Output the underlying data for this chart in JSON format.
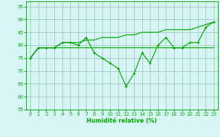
{
  "x": [
    0,
    1,
    2,
    3,
    4,
    5,
    6,
    7,
    8,
    9,
    10,
    11,
    12,
    13,
    14,
    15,
    16,
    17,
    18,
    19,
    20,
    21,
    22,
    23
  ],
  "y_main": [
    75,
    79,
    79,
    79,
    81,
    81,
    80,
    83,
    77,
    75,
    73,
    71,
    64,
    69,
    77,
    73,
    80,
    83,
    79,
    79,
    81,
    81,
    87,
    89
  ],
  "y_min": [
    75,
    79,
    79,
    79,
    79,
    79,
    79,
    79,
    79,
    79,
    79,
    79,
    79,
    79,
    79,
    79,
    79,
    79,
    79,
    79,
    79,
    79,
    79,
    79
  ],
  "y_max": [
    75,
    79,
    79,
    79,
    81,
    81,
    81,
    82,
    82,
    83,
    83,
    83,
    84,
    84,
    85,
    85,
    85,
    86,
    86,
    86,
    86,
    87,
    88,
    89
  ],
  "xlabel": "Humidité relative (%)",
  "ylim": [
    55,
    97
  ],
  "yticks": [
    55,
    60,
    65,
    70,
    75,
    80,
    85,
    90,
    95
  ],
  "xticks": [
    0,
    1,
    2,
    3,
    4,
    5,
    6,
    7,
    8,
    9,
    10,
    11,
    12,
    13,
    14,
    15,
    16,
    17,
    18,
    19,
    20,
    21,
    22,
    23
  ],
  "line_color": "#00AA00",
  "bg_color": "#D8F5F5",
  "grid_color": "#99CCBB"
}
